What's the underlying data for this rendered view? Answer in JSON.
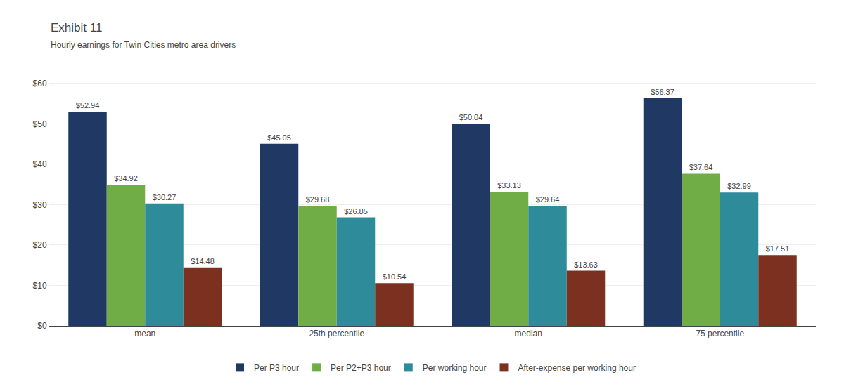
{
  "chart_data": {
    "type": "bar",
    "title": "Exhibit 11",
    "subtitle": "Hourly earnings for Twin Cities metro area drivers",
    "categories": [
      "mean",
      "25th percentile",
      "median",
      "75 percentile"
    ],
    "series": [
      {
        "name": "Per P3 hour",
        "color": "#1f3864",
        "values": [
          52.94,
          45.05,
          50.04,
          56.37
        ],
        "value_labels": [
          "$52.94",
          "$45.05",
          "$50.04",
          "$56.37"
        ]
      },
      {
        "name": "Per P2+P3 hour",
        "color": "#70ad47",
        "values": [
          34.92,
          29.68,
          33.13,
          37.64
        ],
        "value_labels": [
          "$34.92",
          "$29.68",
          "$33.13",
          "$37.64"
        ]
      },
      {
        "name": "Per working hour",
        "color": "#2e8b9a",
        "values": [
          30.27,
          26.85,
          29.64,
          32.99
        ],
        "value_labels": [
          "$30.27",
          "$26.85",
          "$29.64",
          "$32.99"
        ]
      },
      {
        "name": "After-expense per working hour",
        "color": "#7b3020",
        "values": [
          14.48,
          10.54,
          13.63,
          17.51
        ],
        "value_labels": [
          "$14.48",
          "$10.54",
          "$13.63",
          "$17.51"
        ]
      }
    ],
    "ylim": [
      0,
      65
    ],
    "yticks": [
      {
        "value": 0,
        "label": "$0"
      },
      {
        "value": 10,
        "label": "$10"
      },
      {
        "value": 20,
        "label": "$20"
      },
      {
        "value": 30,
        "label": "$30"
      },
      {
        "value": 40,
        "label": "$40"
      },
      {
        "value": 50,
        "label": "$50"
      },
      {
        "value": 60,
        "label": "$60"
      }
    ],
    "grid": true,
    "legend": "bottom",
    "data_labels": true
  }
}
